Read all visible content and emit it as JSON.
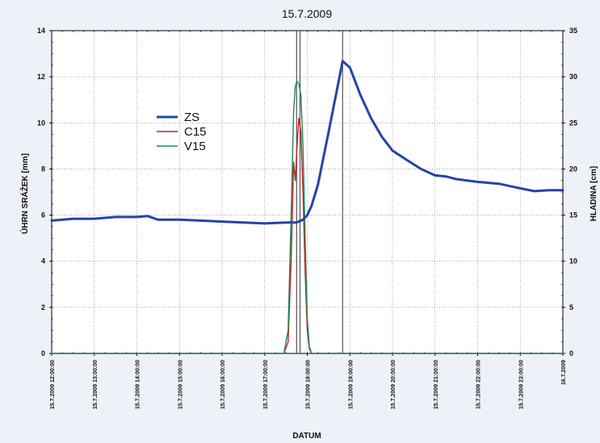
{
  "chart_data": {
    "type": "line",
    "title": "15.7.2009",
    "xlabel": "DATUM",
    "ylabel_left": "ÚHRN SRÁŽEK [mm]",
    "ylabel_right": "HLADINA [cm]",
    "ylim_left": [
      0,
      14
    ],
    "ylim_right": [
      0,
      35
    ],
    "yticks_left": [
      0,
      2,
      4,
      6,
      8,
      10,
      12,
      14
    ],
    "yticks_right": [
      0,
      5,
      10,
      15,
      20,
      25,
      30,
      35
    ],
    "xlim_hours": [
      12,
      24
    ],
    "x_tick_labels": [
      "15.7.2009 12:00:00",
      "15.7.2009 13:00:00",
      "15.7.2009 14:00:00",
      "15.7.2009 15:00:00",
      "15.7.2009 16:00:00",
      "15.7.2009 17:00:00",
      "15.7.2009 18:00:00",
      "15.7.2009 19:00:00",
      "15.7.2009 20:00:00",
      "15.7.2009 21:00:00",
      "15.7.2009 22:00:00",
      "15.7.2009 23:00:00",
      "16.7.2009"
    ],
    "x_tick_hours": [
      12,
      13,
      14,
      15,
      16,
      17,
      18,
      19,
      20,
      21,
      22,
      23,
      24
    ],
    "grid": true,
    "legend_position": "upper-left",
    "vertical_markers_hours": [
      17.75,
      17.83,
      18.83
    ],
    "series": [
      {
        "name": "ZS",
        "axis": "right",
        "color": "#2444a8",
        "x": [
          12,
          12.5,
          13,
          13.5,
          14,
          14.25,
          14.5,
          15,
          15.5,
          16,
          16.5,
          17,
          17.5,
          17.75,
          17.9,
          18,
          18.1,
          18.25,
          18.5,
          18.83,
          19.0,
          19.25,
          19.5,
          19.75,
          20,
          20.33,
          20.67,
          21,
          21.25,
          21.5,
          22,
          22.5,
          23,
          23.33,
          23.67,
          24
        ],
        "y": [
          14.4,
          14.6,
          14.6,
          14.8,
          14.8,
          14.9,
          14.5,
          14.5,
          14.4,
          14.3,
          14.2,
          14.1,
          14.2,
          14.2,
          14.5,
          15.0,
          16.0,
          18.3,
          24.0,
          31.7,
          31.0,
          28.0,
          25.5,
          23.5,
          22.0,
          21.0,
          20.0,
          19.3,
          19.2,
          18.9,
          18.6,
          18.4,
          17.9,
          17.6,
          17.7,
          17.7
        ]
      },
      {
        "name": "C15",
        "axis": "left",
        "color": "#c81e1e",
        "x": [
          12,
          17.45,
          17.55,
          17.62,
          17.68,
          17.72,
          17.76,
          17.8,
          17.85,
          17.9,
          17.95,
          18.0,
          18.05,
          18.1,
          24
        ],
        "y": [
          0,
          0,
          0.5,
          4.0,
          8.3,
          7.5,
          9.0,
          10.2,
          9.6,
          7.0,
          3.5,
          1.0,
          0.2,
          0,
          0
        ]
      },
      {
        "name": "V15",
        "axis": "left",
        "color": "#1a8a5a",
        "x": [
          12,
          17.45,
          17.55,
          17.62,
          17.68,
          17.72,
          17.76,
          17.8,
          17.85,
          17.9,
          17.95,
          18.0,
          18.05,
          18.1,
          24
        ],
        "y": [
          0,
          0,
          1.0,
          6.0,
          10.5,
          11.6,
          11.8,
          11.7,
          11.2,
          9.0,
          5.0,
          1.5,
          0.3,
          0,
          0
        ]
      }
    ]
  }
}
